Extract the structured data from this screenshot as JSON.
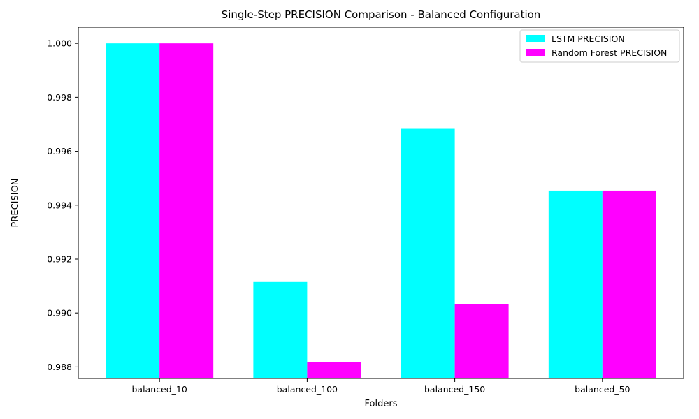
{
  "chart_data": {
    "type": "bar",
    "title": "Single-Step PRECISION Comparison - Balanced Configuration",
    "xlabel": "Folders",
    "ylabel": "PRECISION",
    "categories": [
      "balanced_10",
      "balanced_100",
      "balanced_150",
      "balanced_50"
    ],
    "series": [
      {
        "name": "LSTM PRECISION",
        "color": "#00ffff",
        "values": [
          1.0,
          0.99115,
          0.99683,
          0.99454
        ]
      },
      {
        "name": "Random Forest PRECISION",
        "color": "#ff00ff",
        "values": [
          1.0,
          0.98817,
          0.99032,
          0.99454
        ]
      }
    ],
    "ylim": [
      0.98757,
      1.0006
    ],
    "yticks": [
      0.988,
      0.99,
      0.992,
      0.994,
      0.996,
      0.998,
      1.0
    ],
    "ytick_labels": [
      "0.988",
      "0.990",
      "0.992",
      "0.994",
      "0.996",
      "0.998",
      "1.000"
    ],
    "grid": false,
    "legend_position": "top-right"
  }
}
